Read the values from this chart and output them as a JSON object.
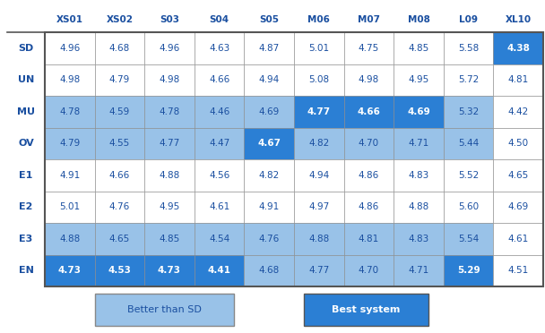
{
  "columns": [
    "XS01",
    "XS02",
    "S03",
    "S04",
    "S05",
    "M06",
    "M07",
    "M08",
    "L09",
    "XL10"
  ],
  "rows": [
    "SD",
    "UN",
    "MU",
    "OV",
    "E1",
    "E2",
    "E3",
    "EN"
  ],
  "values": [
    [
      4.96,
      4.68,
      4.96,
      4.63,
      4.87,
      5.01,
      4.75,
      4.85,
      5.58,
      4.38
    ],
    [
      4.98,
      4.79,
      4.98,
      4.66,
      4.94,
      5.08,
      4.98,
      4.95,
      5.72,
      4.81
    ],
    [
      4.78,
      4.59,
      4.78,
      4.46,
      4.69,
      4.77,
      4.66,
      4.69,
      5.32,
      4.42
    ],
    [
      4.79,
      4.55,
      4.77,
      4.47,
      4.67,
      4.82,
      4.7,
      4.71,
      5.44,
      4.5
    ],
    [
      4.91,
      4.66,
      4.88,
      4.56,
      4.82,
      4.94,
      4.86,
      4.83,
      5.52,
      4.65
    ],
    [
      5.01,
      4.76,
      4.95,
      4.61,
      4.91,
      4.97,
      4.86,
      4.88,
      5.6,
      4.69
    ],
    [
      4.88,
      4.65,
      4.85,
      4.54,
      4.76,
      4.88,
      4.81,
      4.83,
      5.54,
      4.61
    ],
    [
      4.73,
      4.53,
      4.73,
      4.41,
      4.68,
      4.77,
      4.7,
      4.71,
      5.29,
      4.51
    ]
  ],
  "color_white": "#ffffff",
  "color_light_blue": "#99c2e8",
  "color_dark_blue": "#2b7fd4",
  "color_text_dark": "#1a4fa0",
  "color_text_white": "#ffffff",
  "cell_colors": [
    [
      "white",
      "white",
      "white",
      "white",
      "white",
      "white",
      "white",
      "white",
      "white",
      "dark_blue"
    ],
    [
      "white",
      "white",
      "white",
      "white",
      "white",
      "white",
      "white",
      "white",
      "white",
      "white"
    ],
    [
      "light_blue",
      "light_blue",
      "light_blue",
      "light_blue",
      "light_blue",
      "dark_blue",
      "dark_blue",
      "dark_blue",
      "light_blue",
      "white"
    ],
    [
      "light_blue",
      "light_blue",
      "light_blue",
      "light_blue",
      "dark_blue",
      "light_blue",
      "light_blue",
      "light_blue",
      "light_blue",
      "white"
    ],
    [
      "white",
      "white",
      "white",
      "white",
      "white",
      "white",
      "white",
      "white",
      "white",
      "white"
    ],
    [
      "white",
      "white",
      "white",
      "white",
      "white",
      "white",
      "white",
      "white",
      "white",
      "white"
    ],
    [
      "light_blue",
      "light_blue",
      "light_blue",
      "light_blue",
      "light_blue",
      "light_blue",
      "light_blue",
      "light_blue",
      "light_blue",
      "white"
    ],
    [
      "dark_blue",
      "dark_blue",
      "dark_blue",
      "dark_blue",
      "light_blue",
      "light_blue",
      "light_blue",
      "light_blue",
      "dark_blue",
      "white"
    ]
  ],
  "bold_cells": [
    [
      false,
      false,
      false,
      false,
      false,
      false,
      false,
      false,
      false,
      true
    ],
    [
      false,
      false,
      false,
      false,
      false,
      false,
      false,
      false,
      false,
      false
    ],
    [
      false,
      false,
      false,
      false,
      false,
      true,
      true,
      true,
      false,
      false
    ],
    [
      false,
      false,
      false,
      false,
      true,
      false,
      false,
      false,
      false,
      false
    ],
    [
      false,
      false,
      false,
      false,
      false,
      false,
      false,
      false,
      false,
      false
    ],
    [
      false,
      false,
      false,
      false,
      false,
      false,
      false,
      false,
      false,
      false
    ],
    [
      false,
      false,
      false,
      false,
      false,
      false,
      false,
      false,
      false,
      false
    ],
    [
      true,
      true,
      true,
      true,
      false,
      false,
      false,
      false,
      true,
      false
    ]
  ],
  "fig_width": 6.08,
  "fig_height": 3.72,
  "dpi": 100
}
